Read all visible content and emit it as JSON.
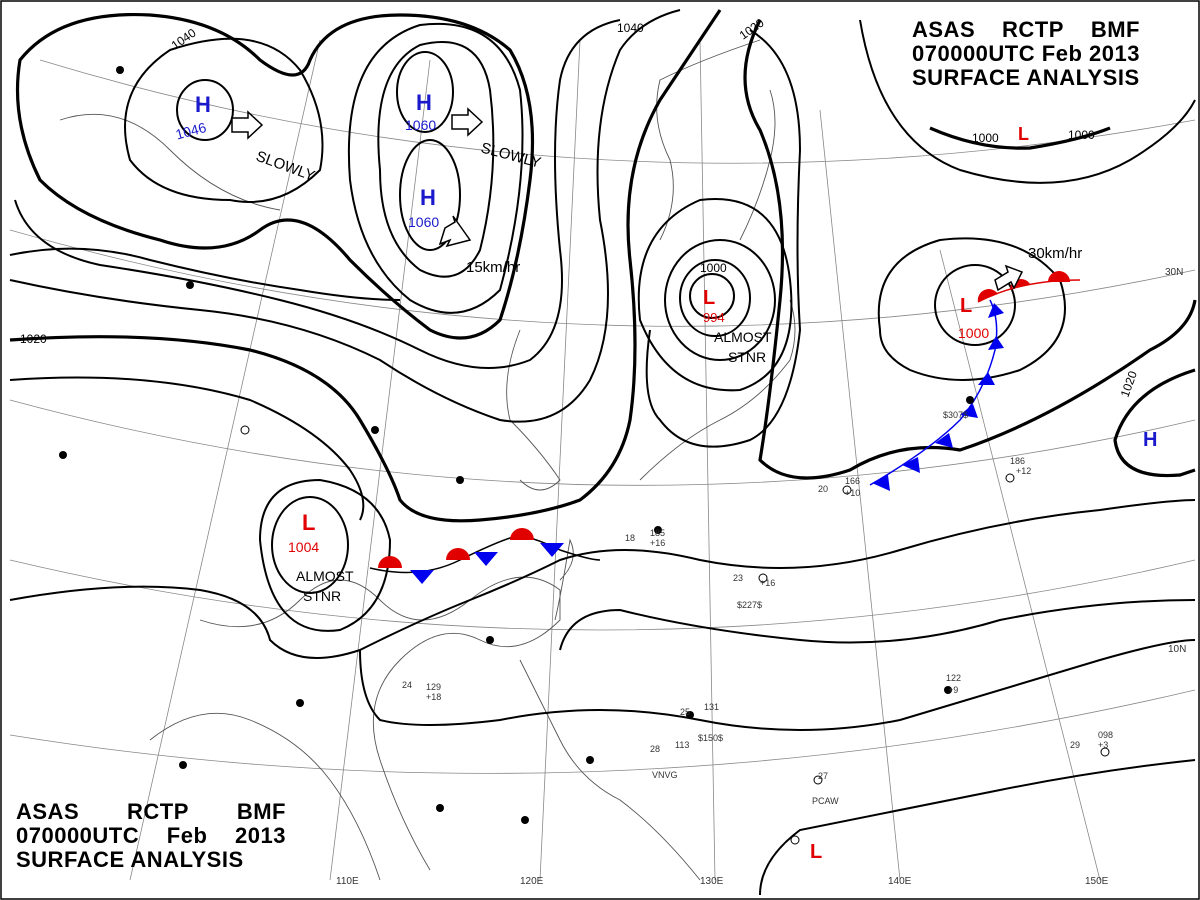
{
  "title": {
    "row1": [
      "ASAS",
      "RCTP",
      "BMF"
    ],
    "row2": [
      "070000UTC",
      "Feb",
      "2013"
    ],
    "row3": "SURFACE ANALYSIS"
  },
  "colors": {
    "high": "#1a1acc",
    "low": "#e00000",
    "warm_front": "#e00000",
    "cold_front": "#0000ee",
    "isobar": "#000000",
    "grid": "#888888"
  },
  "longitude_labels": [
    "110E",
    "120E",
    "130E",
    "140E",
    "150E"
  ],
  "latitude_labels": [
    "30N",
    "10N"
  ],
  "pressure_centers": [
    {
      "type": "H",
      "value": "1046"
    },
    {
      "type": "H",
      "value": "1060"
    },
    {
      "type": "H",
      "value": "1060"
    },
    {
      "type": "L",
      "value": "994"
    },
    {
      "type": "L",
      "value": "1000"
    },
    {
      "type": "L",
      "value": "1004"
    },
    {
      "type": "L",
      "value": ""
    },
    {
      "type": "L",
      "value": ""
    },
    {
      "type": "H",
      "value": ""
    }
  ],
  "isobar_labels": [
    "1040",
    "1040",
    "1020",
    "1020",
    "1000",
    "1000",
    "1000",
    "1020"
  ],
  "movement_annotations": [
    "SLOWLY",
    "SLOWLY",
    "15km/hr",
    "30km/hr"
  ],
  "stationary_notes": [
    {
      "line1": "ALMOST",
      "line2": "STNR"
    },
    {
      "line1": "ALMOST",
      "line2": "STNR"
    }
  ],
  "station_samples": [
    "20",
    "166",
    "+10",
    "23",
    "+16",
    "$227$",
    "18",
    "185",
    "+16",
    "25",
    "131",
    "$150$",
    "28",
    "113",
    "VNVG",
    "27",
    "PCAW",
    "24",
    "129",
    "+18",
    "$307$",
    "186",
    "+12",
    "122",
    "+9",
    "29",
    "098",
    "+3"
  ]
}
